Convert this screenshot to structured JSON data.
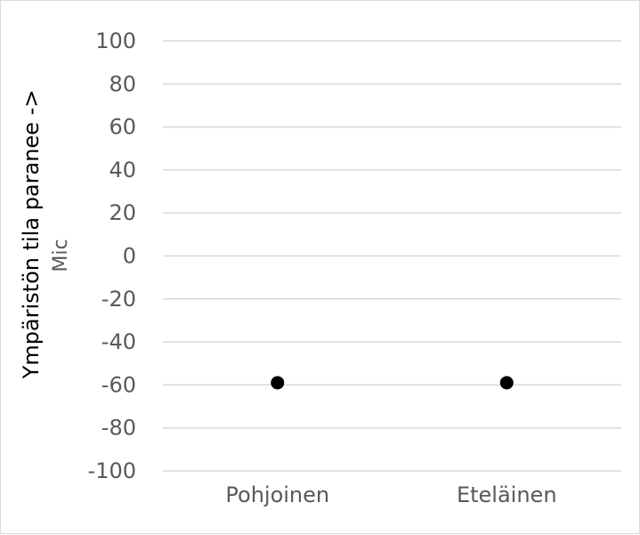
{
  "chart_data": {
    "type": "scatter",
    "categories": [
      "Pohjoinen",
      "Eteläinen"
    ],
    "series": [
      {
        "values": [
          -59,
          -59
        ],
        "color": "#000000"
      }
    ],
    "ylabel": "Ympäristön tila paranee ->",
    "ylabel_sub": "Mic",
    "ylim": [
      -100,
      100
    ],
    "yticks": [
      100,
      80,
      60,
      40,
      20,
      0,
      -20,
      -40,
      -60,
      -80,
      -100
    ],
    "grid": true,
    "grid_color": "#d9d9d9",
    "legend": "none"
  }
}
